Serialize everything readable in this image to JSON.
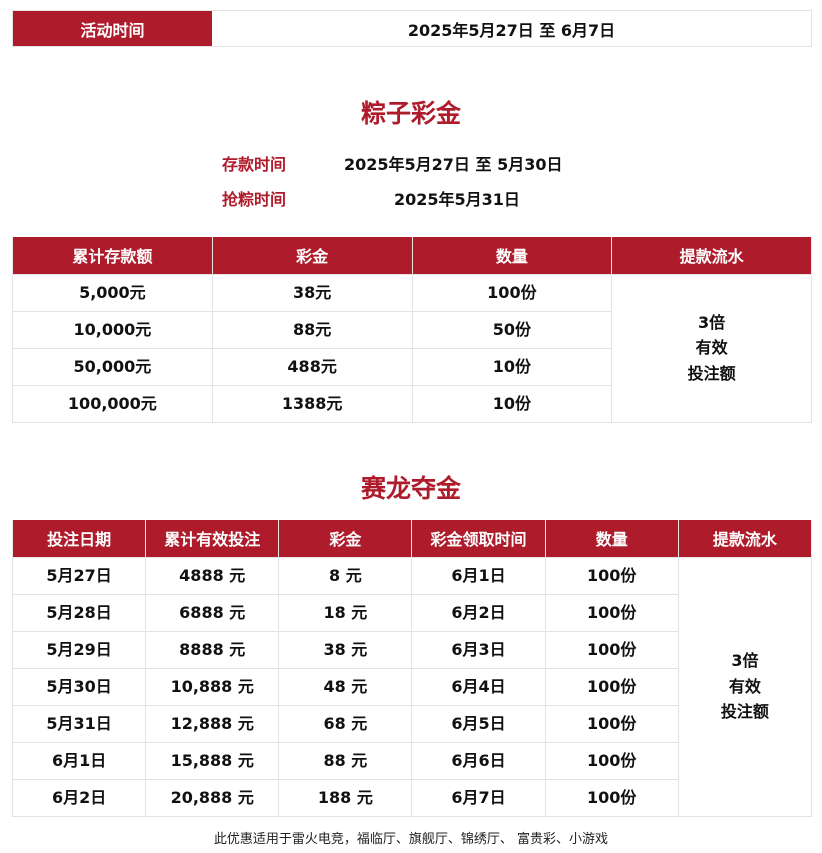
{
  "activity": {
    "label": "活动时间",
    "value": "2025年5月27日 至 6月7日"
  },
  "zongzi": {
    "title": "粽子彩金",
    "deposit_label": "存款时间",
    "deposit_value": "2025年5月27日 至 5月30日",
    "grab_label": "抢粽时间",
    "grab_value": "2025年5月31日",
    "headers": [
      "累计存款额",
      "彩金",
      "数量",
      "提款流水"
    ],
    "rows": [
      [
        "5,000元",
        "38元",
        "100份"
      ],
      [
        "10,000元",
        "88元",
        "50份"
      ],
      [
        "50,000元",
        "488元",
        "10份"
      ],
      [
        "100,000元",
        "1388元",
        "10份"
      ]
    ],
    "turnover": [
      "3倍",
      "有效",
      "投注额"
    ]
  },
  "dragon": {
    "title": "赛龙夺金",
    "headers": [
      "投注日期",
      "累计有效投注",
      "彩金",
      "彩金领取时间",
      "数量",
      "提款流水"
    ],
    "rows": [
      [
        "5月27日",
        "4888 元",
        "8 元",
        "6月1日",
        "100份"
      ],
      [
        "5月28日",
        "6888 元",
        "18 元",
        "6月2日",
        "100份"
      ],
      [
        "5月29日",
        "8888 元",
        "38 元",
        "6月3日",
        "100份"
      ],
      [
        "5月30日",
        "10,888 元",
        "48 元",
        "6月4日",
        "100份"
      ],
      [
        "5月31日",
        "12,888 元",
        "68 元",
        "6月5日",
        "100份"
      ],
      [
        "6月1日",
        "15,888 元",
        "88 元",
        "6月6日",
        "100份"
      ],
      [
        "6月2日",
        "20,888 元",
        "188 元",
        "6月7日",
        "100份"
      ]
    ],
    "turnover": [
      "3倍",
      "有效",
      "投注额"
    ]
  },
  "footer": "此优惠适用于雷火电竞，福临厅、旗舰厅、锦绣厅、 富贵彩、小游戏",
  "colors": {
    "accent": "#ae1c2c"
  }
}
